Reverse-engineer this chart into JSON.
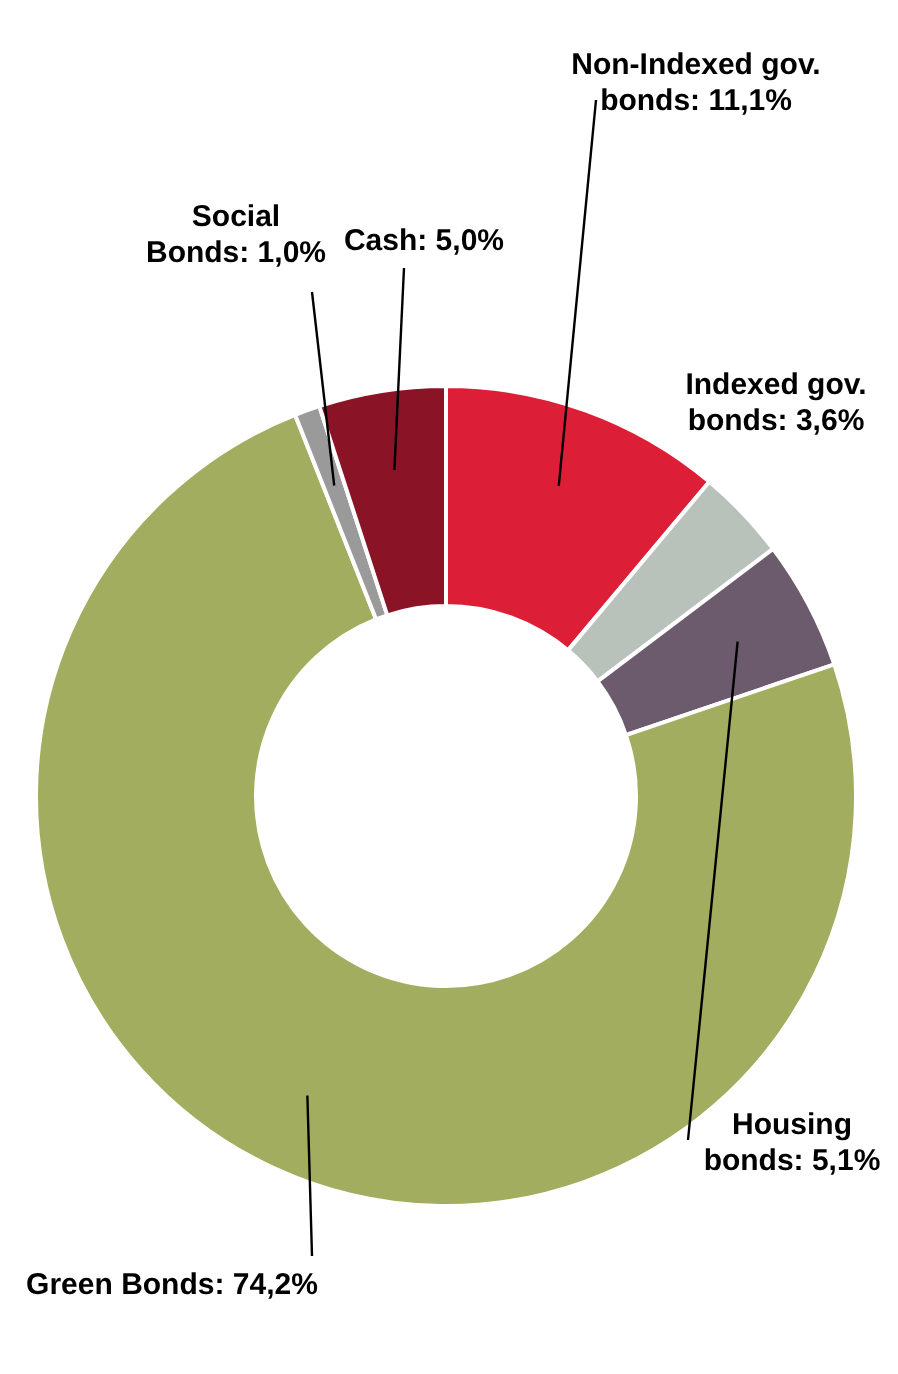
{
  "chart_data": {
    "type": "donut",
    "categories": [
      "Non-Indexed gov. bonds",
      "Indexed gov. bonds",
      "Housing bonds",
      "Green Bonds",
      "Social Bonds",
      "Cash"
    ],
    "values": [
      11.1,
      3.6,
      5.1,
      74.2,
      1.0,
      5.0
    ],
    "value_labels": [
      "11,1%",
      "3,6%",
      "5,1%",
      "74,2%",
      "1,0%",
      "5,0%"
    ],
    "colors": [
      "#dc1f36",
      "#b8c2bb",
      "#6b5b6c",
      "#a2ad5f",
      "#9a9a9a",
      "#8a1426"
    ],
    "legend": false
  }
}
